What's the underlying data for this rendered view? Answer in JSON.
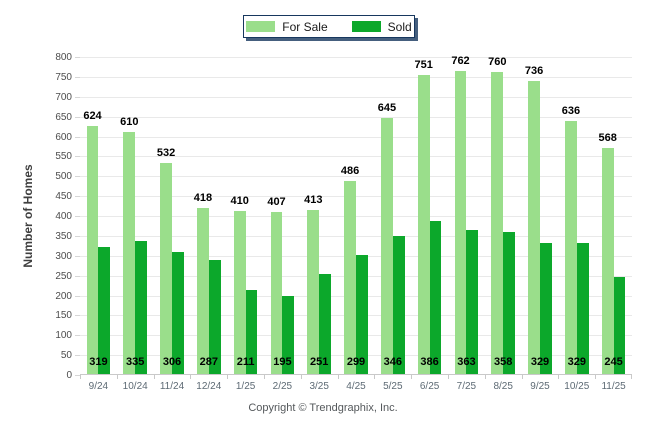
{
  "legend": {
    "position": "top-center"
  },
  "chart_data": {
    "type": "bar",
    "categories": [
      "9/24",
      "10/24",
      "11/24",
      "12/24",
      "1/25",
      "2/25",
      "3/25",
      "4/25",
      "5/25",
      "6/25",
      "7/25",
      "8/25",
      "9/25",
      "10/25",
      "11/25"
    ],
    "series": [
      {
        "name": "For Sale",
        "color": "#9ADE8B",
        "values": [
          624,
          610,
          532,
          418,
          410,
          407,
          413,
          486,
          645,
          751,
          762,
          760,
          736,
          636,
          568
        ]
      },
      {
        "name": "Sold",
        "color": "#0CA82B",
        "values": [
          319,
          335,
          306,
          287,
          211,
          195,
          251,
          299,
          346,
          386,
          363,
          358,
          329,
          329,
          245
        ]
      }
    ],
    "title": "",
    "xlabel": "",
    "ylabel": "Number of Homes",
    "ylim": [
      0,
      800
    ],
    "ytick_step": 50,
    "grid": true,
    "legend_position": "top-center",
    "value_labels": {
      "for_sale": "above bars",
      "sold": "near baseline centered on group"
    }
  },
  "footer": {
    "copyright": "Copyright © Trendgraphix, Inc."
  }
}
